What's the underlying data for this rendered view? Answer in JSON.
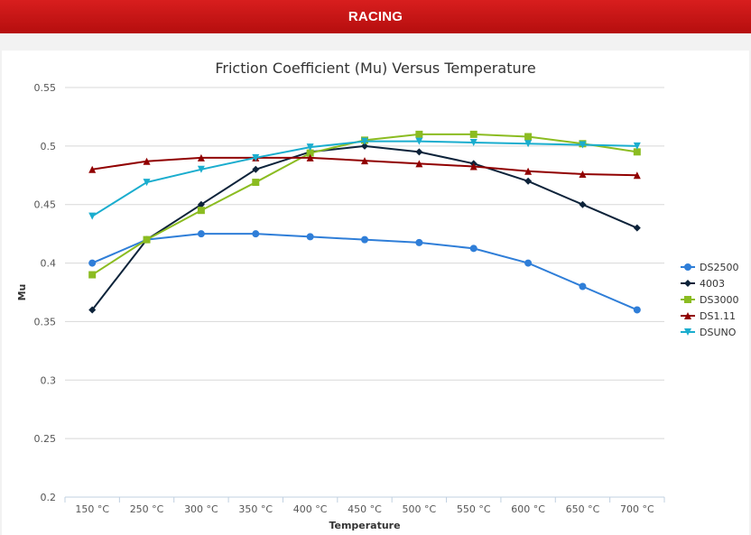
{
  "header": {
    "title": "RACING"
  },
  "chart_data": {
    "type": "line",
    "title": "Friction Coefficient (Mu) Versus Temperature",
    "xlabel": "Temperature",
    "ylabel": "Mu",
    "ylim": [
      0.2,
      0.55
    ],
    "yticks": [
      "0.2",
      "0.25",
      "0.3",
      "0.35",
      "0.4",
      "0.45",
      "0.5",
      "0.55"
    ],
    "categories": [
      "150 °C",
      "250 °C",
      "300 °C",
      "350 °C",
      "400 °C",
      "450 °C",
      "500 °C",
      "550 °C",
      "600 °C",
      "650 °C",
      "700 °C"
    ],
    "grid": "horizontal",
    "legend_position": "right",
    "series": [
      {
        "name": "DS2500",
        "color": "#2f7ed8",
        "marker": "circle",
        "values": [
          0.4,
          0.42,
          0.425,
          0.425,
          0.4225,
          0.42,
          0.4175,
          0.4125,
          0.4,
          0.38,
          0.36
        ]
      },
      {
        "name": "4003",
        "color": "#0d233a",
        "marker": "diamond",
        "values": [
          0.36,
          0.42,
          0.45,
          0.48,
          0.495,
          0.5,
          0.495,
          0.485,
          0.47,
          0.45,
          0.43
        ]
      },
      {
        "name": "DS3000",
        "color": "#8bbc21",
        "marker": "square",
        "values": [
          0.39,
          0.42,
          0.445,
          0.469,
          0.494,
          0.505,
          0.51,
          0.51,
          0.508,
          0.502,
          0.495
        ]
      },
      {
        "name": "DS1.11",
        "color": "#910000",
        "marker": "triangle",
        "values": [
          0.48,
          0.487,
          0.49,
          0.49,
          0.49,
          0.4875,
          0.485,
          0.4825,
          0.4785,
          0.476,
          0.475
        ]
      },
      {
        "name": "DSUNO",
        "color": "#1aadce",
        "marker": "triangle-down",
        "values": [
          0.44,
          0.469,
          0.48,
          0.49,
          0.499,
          0.504,
          0.504,
          0.503,
          0.502,
          0.501,
          0.5
        ]
      }
    ]
  }
}
